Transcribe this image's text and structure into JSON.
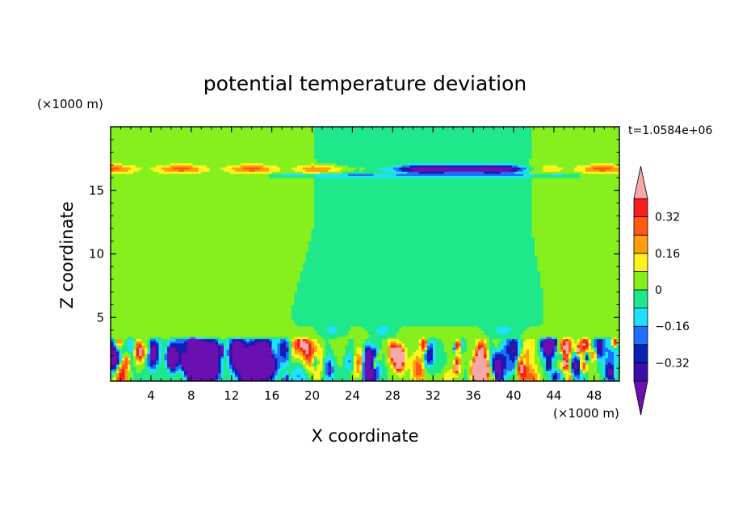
{
  "chart_data": {
    "type": "heatmap",
    "title": "potential temperature deviation",
    "xlabel": "X coordinate",
    "ylabel": "Z coordinate",
    "x_unit": "(×1000 m)",
    "y_unit": "(×1000 m)",
    "time_label": "t=1.0584e+06",
    "xlim": [
      0,
      50.5
    ],
    "ylim": [
      0,
      20
    ],
    "x_ticks": [
      4,
      8,
      12,
      16,
      20,
      24,
      28,
      32,
      36,
      40,
      44,
      48
    ],
    "y_ticks": [
      5,
      10,
      15
    ],
    "colorbar": {
      "levels": [
        -0.4,
        -0.32,
        -0.24,
        -0.16,
        -0.08,
        0,
        0.08,
        0.16,
        0.24,
        0.32,
        0.4
      ],
      "tick_labels": [
        "0.32",
        "0.16",
        "0",
        "-0.16",
        "-0.32"
      ],
      "tick_values": [
        0.32,
        0.16,
        0,
        -0.16,
        -0.32
      ],
      "colors": {
        "below_min": "#6a0fb0",
        "bins_low_to_high": [
          "#3b0ea8",
          "#0b21b4",
          "#1f6fff",
          "#1fe0ff",
          "#1ee88a",
          "#86f01e",
          "#fff31e",
          "#ff9e0d",
          "#ff5a14",
          "#f41f1f"
        ],
        "above_max": "#f4a8a8"
      }
    },
    "field_description_free": false,
    "features": {
      "background_value": 0.02,
      "cool_column": {
        "x_range": [
          19,
          44
        ],
        "value": -0.05
      },
      "tropopause_warm_band": {
        "z": 16.7,
        "value": 0.25
      },
      "tropopause_cold_lens": {
        "x_range": [
          25,
          44
        ],
        "z": 16.7,
        "value": -0.4
      },
      "boundary_layer_top": 3.4
    }
  }
}
